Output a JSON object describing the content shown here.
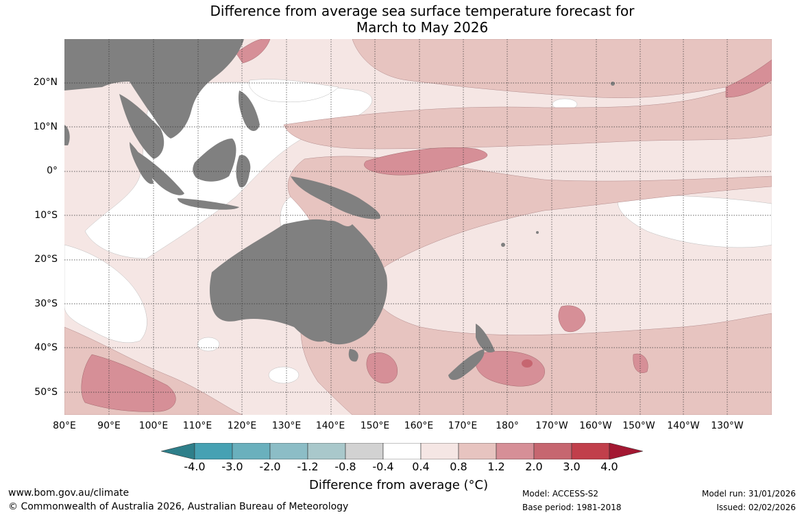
{
  "title": {
    "line1": "Difference from average sea surface temperature forecast for",
    "line2": "March to May 2026"
  },
  "map": {
    "land_color": "#808080",
    "latitude_labels": [
      "20°N",
      "10°N",
      "0°",
      "10°S",
      "20°S",
      "30°S",
      "40°S",
      "50°S"
    ],
    "longitude_labels": [
      "80°E",
      "90°E",
      "100°E",
      "110°E",
      "120°E",
      "130°E",
      "140°E",
      "150°E",
      "160°E",
      "170°E",
      "180°",
      "170°W",
      "160°W",
      "150°W",
      "140°W",
      "130°W"
    ]
  },
  "colorbar": {
    "title": "Difference from average (°C)",
    "tick_labels": [
      "-4.0",
      "-3.0",
      "-2.0",
      "-1.2",
      "-0.8",
      "-0.4",
      "0.4",
      "0.8",
      "1.2",
      "2.0",
      "3.0",
      "4.0"
    ],
    "colors": [
      "#2e7f8a",
      "#46a1b3",
      "#6ab0bd",
      "#8cbdc6",
      "#a9c8cb",
      "#d2d2d2",
      "#ffffff",
      "#f5e6e4",
      "#e7c4c0",
      "#d68f97",
      "#c66670",
      "#c13f4b",
      "#a31832"
    ]
  },
  "footer": {
    "website": "www.bom.gov.au/climate",
    "copyright": "© Commonwealth of Australia 2026, Australian Bureau of Meteorology",
    "model": "Model: ACCESS-S2",
    "base_period": "Base period: 1981-2018",
    "model_run": "Model run: 31/01/2026",
    "issued": "Issued: 02/02/2026"
  }
}
